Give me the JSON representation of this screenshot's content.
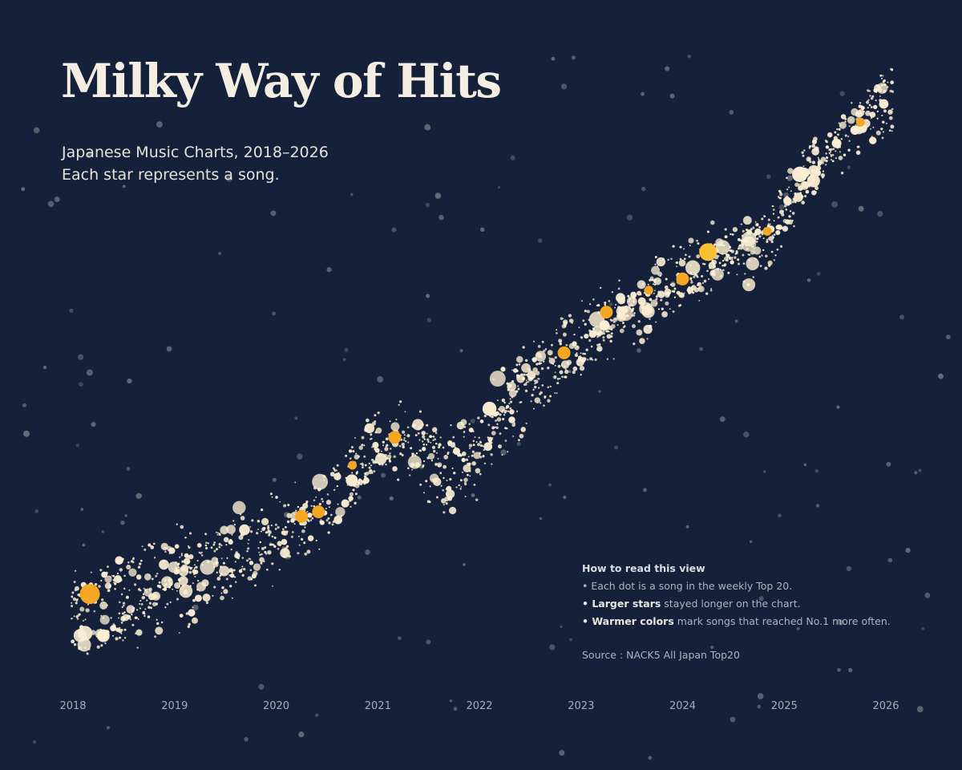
{
  "header": {
    "title": "Milky Way of Hits",
    "subtitle_line1": "Japanese Music Charts, 2018–2026",
    "subtitle_line2": "Each star represents a song."
  },
  "legend": {
    "heading": "How to read this view",
    "item1": "• Each dot is a song in the weekly Top 20.",
    "item2_bold": "• Larger stars",
    "item2_rest": " stayed longer on the chart.",
    "item3_bold": "• Warmer colors",
    "item3_rest": " mark songs that reached No.1 more often.",
    "source": "Source : NACK5 All Japan Top20"
  },
  "colors": {
    "background": "#15213a",
    "song_dot": "#fbeed3",
    "hit_song": "#f5a623",
    "top_hit": "#ff8c1a",
    "background_star": "#6f7480"
  },
  "chart_data": {
    "type": "scatter",
    "title": "Milky Way of Hits",
    "x_axis": {
      "type": "time",
      "range": [
        "2018-01",
        "2026-01"
      ],
      "tick_labels": [
        "2018",
        "2019",
        "2020",
        "2021",
        "2022",
        "2023",
        "2024",
        "2025",
        "2026"
      ]
    },
    "y_axis": {
      "visible": false
    },
    "grid": false,
    "encoding": {
      "size": "weeks on the chart",
      "color": "frequency of reaching No.1"
    },
    "band_trend": "rises steadily from lower-left (2018) to upper-right (2026)",
    "highlighted_hits": [
      {
        "x": "2018-03",
        "size": "largest",
        "color": "orange"
      },
      {
        "x": "2020-04",
        "size": "medium",
        "color": "orange"
      },
      {
        "x": "2020-06",
        "size": "medium",
        "color": "orange"
      },
      {
        "x": "2020-10",
        "size": "small",
        "color": "orange"
      },
      {
        "x": "2021-03",
        "size": "medium",
        "color": "orange"
      },
      {
        "x": "2022-11",
        "size": "medium",
        "color": "orange"
      },
      {
        "x": "2023-04",
        "size": "medium",
        "color": "orange"
      },
      {
        "x": "2023-09",
        "size": "small",
        "color": "orange"
      },
      {
        "x": "2024-01",
        "size": "medium",
        "color": "orange"
      },
      {
        "x": "2024-04",
        "size": "large",
        "color": "yellow-orange"
      },
      {
        "x": "2024-11",
        "size": "small",
        "color": "orange"
      },
      {
        "x": "2025-10",
        "size": "small",
        "color": "orange"
      }
    ]
  }
}
